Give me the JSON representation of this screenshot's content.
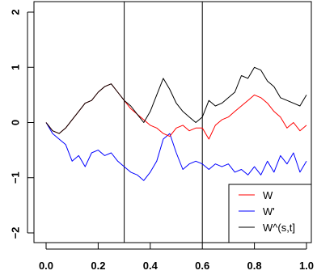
{
  "chart_data": {
    "type": "line",
    "title": "",
    "xlabel": "",
    "ylabel": "",
    "xlim": [
      0.0,
      1.0
    ],
    "ylim": [
      -2.0,
      2.0
    ],
    "x_ticks": [
      "0.0",
      "0.2",
      "0.4",
      "0.6",
      "0.8",
      "1.0"
    ],
    "y_ticks": [
      "−2",
      "−1",
      "0",
      "1",
      "2"
    ],
    "vlines": [
      0.3,
      0.6
    ],
    "grid": false,
    "legend_position": "bottom-right",
    "x": [
      0.0,
      0.025,
      0.05,
      0.075,
      0.1,
      0.125,
      0.15,
      0.175,
      0.2,
      0.225,
      0.25,
      0.275,
      0.3,
      0.325,
      0.35,
      0.375,
      0.4,
      0.425,
      0.45,
      0.475,
      0.5,
      0.525,
      0.55,
      0.575,
      0.6,
      0.625,
      0.65,
      0.675,
      0.7,
      0.725,
      0.75,
      0.775,
      0.8,
      0.825,
      0.85,
      0.875,
      0.9,
      0.925,
      0.95,
      0.975,
      1.0
    ],
    "series": [
      {
        "name": "W",
        "color": "#ff0000",
        "values": [
          0.0,
          -0.15,
          -0.2,
          -0.1,
          0.05,
          0.2,
          0.35,
          0.4,
          0.55,
          0.65,
          0.7,
          0.55,
          0.4,
          0.25,
          0.15,
          0.05,
          -0.05,
          -0.1,
          -0.2,
          -0.25,
          -0.1,
          -0.05,
          -0.15,
          -0.1,
          -0.1,
          -0.3,
          -0.05,
          0.05,
          0.1,
          0.2,
          0.3,
          0.4,
          0.5,
          0.45,
          0.35,
          0.2,
          0.1,
          -0.1,
          0.0,
          -0.15,
          -0.05
        ]
      },
      {
        "name": "W'",
        "color": "#0000ff",
        "values": [
          0.0,
          -0.2,
          -0.3,
          -0.4,
          -0.7,
          -0.6,
          -0.8,
          -0.55,
          -0.5,
          -0.6,
          -0.55,
          -0.7,
          -0.8,
          -0.9,
          -0.95,
          -1.05,
          -0.9,
          -0.7,
          -0.3,
          -0.2,
          -0.55,
          -0.85,
          -0.75,
          -0.7,
          -0.75,
          -0.85,
          -0.75,
          -0.8,
          -0.75,
          -0.9,
          -0.85,
          -0.95,
          -0.8,
          -0.95,
          -0.7,
          -0.9,
          -0.6,
          -0.75,
          -0.55,
          -0.9,
          -0.7
        ]
      },
      {
        "name": "W^(s,t]",
        "color": "#000000",
        "values": [
          0.0,
          -0.15,
          -0.2,
          -0.1,
          0.05,
          0.2,
          0.35,
          0.4,
          0.55,
          0.65,
          0.7,
          0.55,
          0.4,
          0.3,
          0.15,
          0.0,
          0.2,
          0.5,
          0.8,
          0.6,
          0.35,
          0.2,
          0.1,
          0.0,
          0.1,
          0.4,
          0.3,
          0.35,
          0.45,
          0.55,
          0.85,
          0.8,
          1.0,
          0.95,
          0.75,
          0.65,
          0.45,
          0.4,
          0.35,
          0.3,
          0.5
        ]
      }
    ]
  }
}
